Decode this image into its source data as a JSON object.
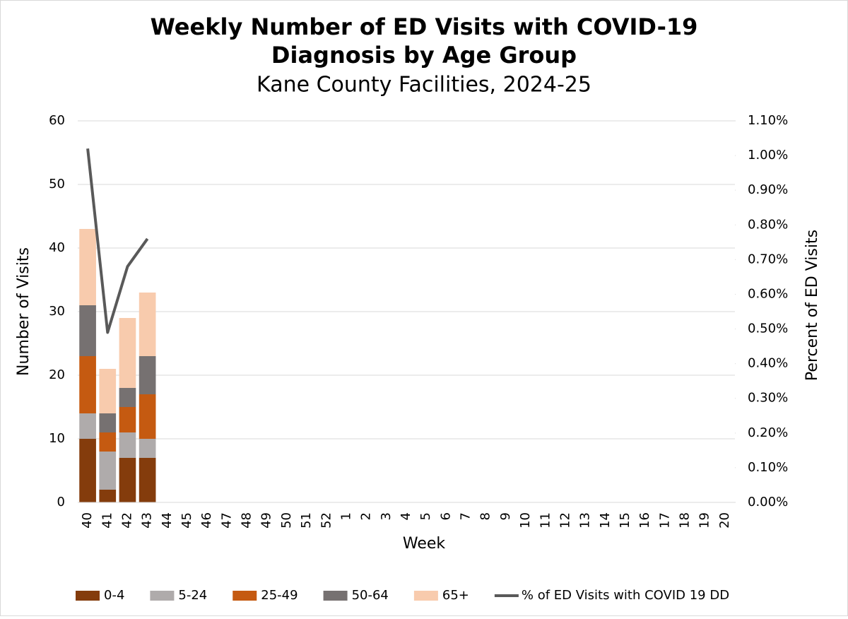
{
  "chart_data": {
    "type": "bar",
    "stacked": true,
    "title": [
      "Weekly Number of ED Visits with COVID-19",
      "Diagnosis by Age Group"
    ],
    "subtitle": "Kane County Facilities, 2024-25",
    "x_label": "Week",
    "y_label": "Number of Visits",
    "y2_label": "Percent of ED Visits",
    "categories": [
      "40",
      "41",
      "42",
      "43",
      "44",
      "45",
      "46",
      "47",
      "48",
      "49",
      "50",
      "51",
      "52",
      "1",
      "2",
      "3",
      "4",
      "5",
      "6",
      "7",
      "8",
      "9",
      "10",
      "11",
      "12",
      "13",
      "14",
      "15",
      "16",
      "17",
      "18",
      "19",
      "20"
    ],
    "series": [
      {
        "name": "0-4",
        "color": "#843c0c",
        "values": [
          10,
          2,
          7,
          7,
          null,
          null,
          null,
          null,
          null,
          null,
          null,
          null,
          null,
          null,
          null,
          null,
          null,
          null,
          null,
          null,
          null,
          null,
          null,
          null,
          null,
          null,
          null,
          null,
          null,
          null,
          null,
          null,
          null
        ]
      },
      {
        "name": "5-24",
        "color": "#afabab",
        "values": [
          4,
          6,
          4,
          3,
          null,
          null,
          null,
          null,
          null,
          null,
          null,
          null,
          null,
          null,
          null,
          null,
          null,
          null,
          null,
          null,
          null,
          null,
          null,
          null,
          null,
          null,
          null,
          null,
          null,
          null,
          null,
          null,
          null
        ]
      },
      {
        "name": "25-49",
        "color": "#c55a11",
        "values": [
          9,
          3,
          4,
          7,
          null,
          null,
          null,
          null,
          null,
          null,
          null,
          null,
          null,
          null,
          null,
          null,
          null,
          null,
          null,
          null,
          null,
          null,
          null,
          null,
          null,
          null,
          null,
          null,
          null,
          null,
          null,
          null,
          null
        ]
      },
      {
        "name": "50-64",
        "color": "#767171",
        "values": [
          8,
          3,
          3,
          6,
          null,
          null,
          null,
          null,
          null,
          null,
          null,
          null,
          null,
          null,
          null,
          null,
          null,
          null,
          null,
          null,
          null,
          null,
          null,
          null,
          null,
          null,
          null,
          null,
          null,
          null,
          null,
          null,
          null
        ]
      },
      {
        "name": "65+",
        "color": "#f8cbad",
        "values": [
          12,
          7,
          11,
          10,
          null,
          null,
          null,
          null,
          null,
          null,
          null,
          null,
          null,
          null,
          null,
          null,
          null,
          null,
          null,
          null,
          null,
          null,
          null,
          null,
          null,
          null,
          null,
          null,
          null,
          null,
          null,
          null,
          null
        ]
      },
      {
        "name": "% of ED Visits with COVID 19 DD",
        "type": "line",
        "axis": "y2",
        "color": "#595959",
        "values": [
          1.02,
          0.49,
          0.68,
          0.76,
          null,
          null,
          null,
          null,
          null,
          null,
          null,
          null,
          null,
          null,
          null,
          null,
          null,
          null,
          null,
          null,
          null,
          null,
          null,
          null,
          null,
          null,
          null,
          null,
          null,
          null,
          null,
          null,
          null
        ]
      }
    ],
    "ylim": [
      0,
      60
    ],
    "yticks": [
      0,
      10,
      20,
      30,
      40,
      50,
      60
    ],
    "y2lim": [
      0,
      1.1
    ],
    "y2ticks": [
      {
        "value": 0,
        "label": "0.00%"
      },
      {
        "value": 0.1,
        "label": "0.10%"
      },
      {
        "value": 0.2,
        "label": "0.20%"
      },
      {
        "value": 0.3,
        "label": "0.30%"
      },
      {
        "value": 0.4,
        "label": "0.40%"
      },
      {
        "value": 0.5,
        "label": "0.50%"
      },
      {
        "value": 0.6,
        "label": "0.60%"
      },
      {
        "value": 0.7,
        "label": "0.70%"
      },
      {
        "value": 0.8,
        "label": "0.80%"
      },
      {
        "value": 0.9,
        "label": "0.90%"
      },
      {
        "value": 1.0,
        "label": "1.00%"
      },
      {
        "value": 1.1,
        "label": "1.10%"
      }
    ],
    "grid": true,
    "legend": "bottom"
  }
}
